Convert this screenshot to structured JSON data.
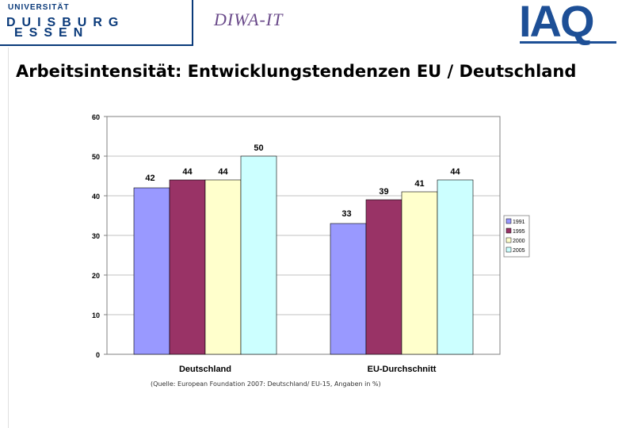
{
  "header": {
    "uni_top": "UNIVERSITÄT",
    "uni_line1": "DUISBURG",
    "uni_line2": "ESSEN",
    "diva_logo": "DIWA-IT",
    "iaq_logo": "IAQ"
  },
  "title": "Arbeitsintensität: Entwicklungstendenzen EU / Deutschland",
  "source": "(Quelle: European Foundation 2007: Deutschland/ EU-15, Angaben in %)",
  "chart_data": {
    "type": "bar",
    "title": "Arbeitsintensität: Entwicklungstendenzen EU / Deutschland",
    "categories": [
      "Deutschland",
      "EU-Durchschnitt"
    ],
    "series": [
      {
        "name": "1991",
        "values": [
          42,
          33
        ],
        "color": "#9999ff"
      },
      {
        "name": "1995",
        "values": [
          44,
          39
        ],
        "color": "#993366"
      },
      {
        "name": "2000",
        "values": [
          44,
          41
        ],
        "color": "#ffffcc"
      },
      {
        "name": "2005",
        "values": [
          50,
          44
        ],
        "color": "#ccffff"
      }
    ],
    "yticks": [
      "0",
      "10",
      "20",
      "30",
      "40",
      "50",
      "60"
    ],
    "ylim": [
      0,
      60
    ],
    "xlabel": "",
    "ylabel": "",
    "legend": "right",
    "grid": true
  }
}
